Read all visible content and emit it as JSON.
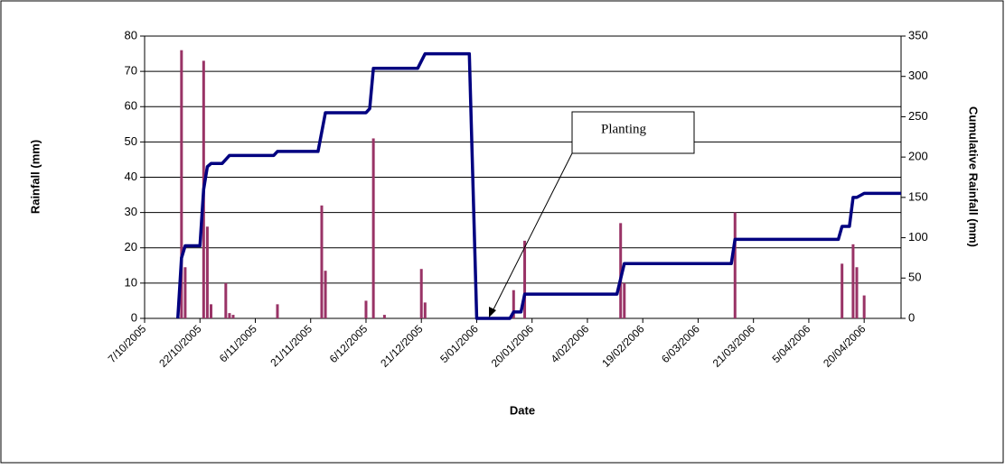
{
  "chart_data": {
    "type": "bar-line",
    "xlabel": "Date",
    "ylabel": "Rainfall (mm)",
    "y2label": "Cumulative Rainfall (mm)",
    "annotation": "Planting",
    "xlim": [
      "2005-10-07",
      "2006-04-30"
    ],
    "xticks": [
      {
        "value": "2005-10-07",
        "label": "7/10/2005"
      },
      {
        "value": "2005-10-22",
        "label": "22/10/2005"
      },
      {
        "value": "2005-11-06",
        "label": "6/11/2005"
      },
      {
        "value": "2005-11-21",
        "label": "21/11/2005"
      },
      {
        "value": "2005-12-06",
        "label": "6/12/2005"
      },
      {
        "value": "2005-12-21",
        "label": "21/12/2005"
      },
      {
        "value": "2006-01-05",
        "label": "5/01/2006"
      },
      {
        "value": "2006-01-20",
        "label": "20/01/2006"
      },
      {
        "value": "2006-02-04",
        "label": "4/02/2006"
      },
      {
        "value": "2006-02-19",
        "label": "19/02/2006"
      },
      {
        "value": "2006-03-06",
        "label": "6/03/2006"
      },
      {
        "value": "2006-03-21",
        "label": "21/03/2006"
      },
      {
        "value": "2006-04-05",
        "label": "5/04/2006"
      },
      {
        "value": "2006-04-20",
        "label": "20/04/2006"
      }
    ],
    "ylim": [
      0,
      80
    ],
    "yticks": [
      0,
      10,
      20,
      30,
      40,
      50,
      60,
      70,
      80
    ],
    "y2lim": [
      0,
      350
    ],
    "y2ticks": [
      0,
      50,
      100,
      150,
      200,
      250,
      300,
      350
    ],
    "grid": true,
    "series": [
      {
        "name": "Rainfall",
        "type": "bar",
        "color": "#993366",
        "x": [
          "2005-10-17",
          "2005-10-18",
          "2005-10-23",
          "2005-10-24",
          "2005-10-25",
          "2005-10-29",
          "2005-10-30",
          "2005-10-31",
          "2005-11-12",
          "2005-11-24",
          "2005-11-25",
          "2005-12-06",
          "2005-12-08",
          "2005-12-11",
          "2005-12-21",
          "2005-12-22",
          "2006-01-15",
          "2006-01-18",
          "2006-02-13",
          "2006-02-14",
          "2006-03-16",
          "2006-04-14",
          "2006-04-17",
          "2006-04-18",
          "2006-04-20"
        ],
        "values": [
          76,
          14.5,
          73,
          26,
          4,
          10,
          1.5,
          1,
          4,
          32,
          13.5,
          5,
          51,
          1,
          14,
          4.5,
          8,
          22,
          27,
          10,
          30,
          15.5,
          21,
          14.5,
          6.5
        ]
      },
      {
        "name": "Cumulative Rainfall",
        "type": "line",
        "axis": "y2",
        "color": "#000080",
        "x": [
          "2005-10-16",
          "2005-10-17",
          "2005-10-18",
          "2005-10-22",
          "2005-10-23",
          "2005-10-24",
          "2005-10-25",
          "2005-10-28",
          "2005-10-30",
          "2005-11-11",
          "2005-11-12",
          "2005-11-23",
          "2005-11-25",
          "2005-12-06",
          "2005-12-07",
          "2005-12-08",
          "2005-12-20",
          "2005-12-22",
          "2006-01-03",
          "2006-01-05",
          "2006-01-14",
          "2006-01-15",
          "2006-01-17",
          "2006-01-18",
          "2006-02-12",
          "2006-02-14",
          "2006-03-15",
          "2006-03-16",
          "2006-04-13",
          "2006-04-14",
          "2006-04-16",
          "2006-04-17",
          "2006-04-18",
          "2006-04-20",
          "2006-04-30"
        ],
        "values": [
          0,
          75,
          90,
          90,
          160,
          188,
          192,
          192,
          202,
          202,
          207,
          207,
          255,
          255,
          260,
          310,
          310,
          328,
          328,
          0,
          0,
          8,
          8,
          30,
          30,
          68,
          68,
          98,
          98,
          114,
          114,
          150,
          150,
          155,
          155
        ]
      }
    ]
  }
}
